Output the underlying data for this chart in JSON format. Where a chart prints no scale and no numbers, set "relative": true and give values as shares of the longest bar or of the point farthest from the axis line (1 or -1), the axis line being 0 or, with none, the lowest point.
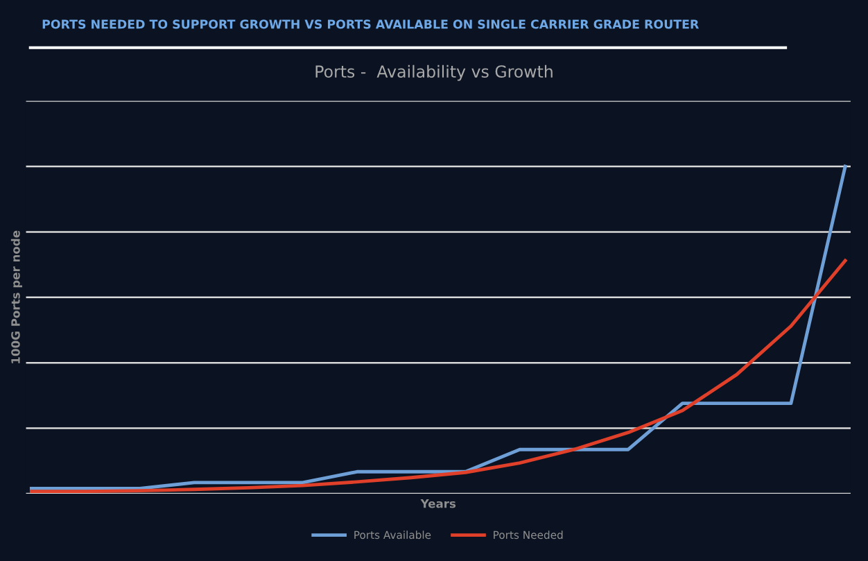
{
  "chart_data": {
    "type": "line",
    "title": "PORTS NEEDED TO SUPPORT GROWTH VS PORTS AVAILABLE ON SINGLE CARRIER GRADE ROUTER",
    "subtitle": "Ports -  Availability vs Growth",
    "xlabel": "Years",
    "ylabel": "100G Ports per node",
    "relative": true,
    "categories": [
      null,
      null,
      null,
      null,
      null,
      null,
      null,
      null,
      null,
      null,
      null,
      null,
      null,
      null,
      null,
      null
    ],
    "series": [
      {
        "name": "Ports Available",
        "color": "#6e9fd6",
        "values": [
          0.016,
          0.016,
          0.016,
          0.034,
          0.034,
          0.034,
          0.067,
          0.067,
          0.067,
          0.135,
          0.135,
          0.135,
          0.276,
          0.276,
          0.276,
          1
        ]
      },
      {
        "name": "Ports Needed",
        "color": "#e0402a",
        "values": [
          0.007,
          0.007,
          0.009,
          0.013,
          0.018,
          0.025,
          0.036,
          0.049,
          0.065,
          0.094,
          0.135,
          0.187,
          0.254,
          0.364,
          0.512,
          0.712
        ]
      }
    ],
    "grid": "y",
    "legend": "bottom",
    "marker": "none",
    "line_style": "solid"
  }
}
